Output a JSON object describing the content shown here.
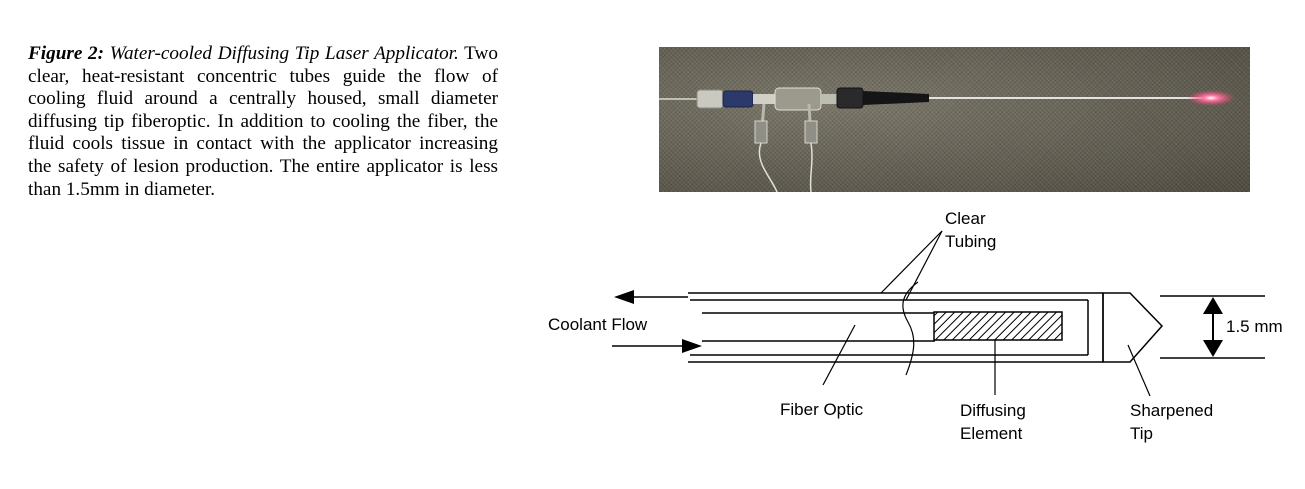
{
  "caption": {
    "label": "Figure 2:",
    "title": "Water-cooled Diffusing Tip Laser Applicator.",
    "body": "Two clear, heat-resistant concentric tubes guide the flow of cooling fluid around a centrally housed, small diameter diffusing tip fiberoptic.  In addition to cooling the fiber, the fluid cools tissue in contact with the applicator increasing the safety of lesion production.  The entire applicator is less than 1.5mm in diameter."
  },
  "diagram": {
    "clear_tubing_line1": "Clear",
    "clear_tubing_line2": "Tubing",
    "coolant_flow": "Coolant Flow",
    "fiber_optic": "Fiber Optic",
    "diffusing_line1": "Diffusing",
    "diffusing_line2": "Element",
    "sharpened_line1": "Sharpened",
    "sharpened_line2": "Tip",
    "dimension": "1.5 mm"
  }
}
